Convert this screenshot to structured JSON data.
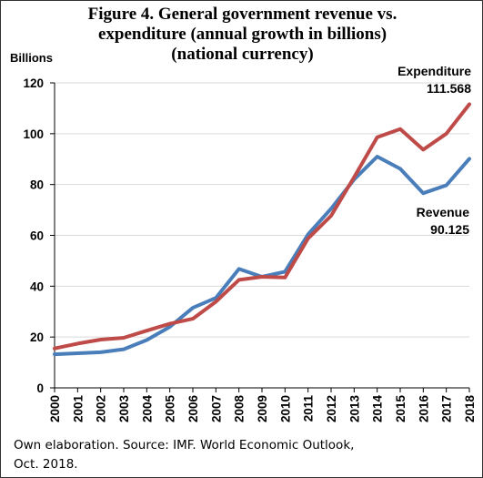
{
  "title_lines": [
    "Figure 4. General government revenue vs.",
    "expenditure (annual growth in billions)",
    "(national currency)"
  ],
  "source": [
    "Own elaboration. Source: IMF. World Economic Outlook,",
    "Oct. 2018."
  ],
  "colors": {
    "revenue": "#4a7ebb",
    "expenditure": "#be4b48",
    "grid": "#d9d9d9",
    "axis": "#000000"
  },
  "chart_data": {
    "type": "line",
    "title": "Figure 4. General government revenue vs. expenditure (annual growth in billions) (national currency)",
    "xlabel": "",
    "ylabel": "Billions",
    "x": [
      "2000",
      "2001",
      "2002",
      "2003",
      "2004",
      "2005",
      "2006",
      "2007",
      "2008",
      "2009",
      "2010",
      "2011",
      "2012",
      "2013",
      "2014",
      "2015",
      "2016",
      "2017",
      "2018"
    ],
    "ylim": [
      0,
      120
    ],
    "yticks": [
      0,
      20,
      40,
      60,
      80,
      100,
      120
    ],
    "grid": true,
    "legend": "none",
    "series": [
      {
        "name": "Revenue",
        "color": "#4a7ebb",
        "values": [
          13.2,
          13.6,
          14.0,
          15.2,
          18.8,
          24.0,
          31.5,
          35.4,
          46.8,
          43.7,
          45.7,
          60.4,
          70.5,
          82.0,
          91.0,
          86.2,
          76.6,
          79.7,
          90.125
        ]
      },
      {
        "name": "Expenditure",
        "color": "#be4b48",
        "values": [
          15.5,
          17.4,
          19.0,
          19.7,
          22.5,
          25.2,
          27.2,
          33.9,
          42.5,
          43.7,
          43.4,
          58.8,
          67.7,
          82.9,
          98.6,
          101.8,
          93.7,
          100.0,
          111.568
        ]
      }
    ],
    "annotations": [
      {
        "series": "Expenditure",
        "lines": [
          "Expenditure",
          "111.568"
        ]
      },
      {
        "series": "Revenue",
        "lines": [
          "Revenue",
          "90.125"
        ]
      }
    ]
  }
}
